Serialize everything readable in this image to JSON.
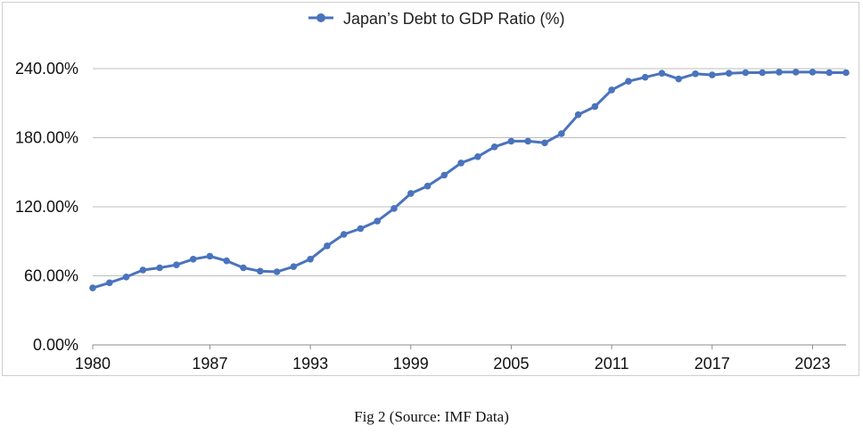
{
  "caption": "Fig 2 (Source: IMF Data)",
  "colors": {
    "series": "#4a73bd",
    "grid": "#bdbdbd",
    "axis": "#8c8c8c"
  },
  "chart_data": {
    "type": "line",
    "legend": {
      "label": "Japan’s Debt to GDP Ratio (%)",
      "position": "top-center"
    },
    "ylim": [
      0,
      240
    ],
    "y_ticks": [
      0,
      60,
      120,
      180,
      240
    ],
    "y_tick_labels": [
      "0.00%",
      "60.00%",
      "120.00%",
      "180.00%",
      "240.00%"
    ],
    "xlim": [
      1980,
      2025
    ],
    "x_ticks": [
      1980,
      1987,
      1993,
      1999,
      2005,
      2011,
      2017,
      2023
    ],
    "x_tick_labels": [
      "1980",
      "1987",
      "1993",
      "1999",
      "2005",
      "2011",
      "2017",
      "2023"
    ],
    "grid": true,
    "series": [
      {
        "name": "Japan’s Debt to GDP Ratio (%)",
        "x": [
          1980,
          1981,
          1982,
          1983,
          1984,
          1985,
          1986,
          1987,
          1988,
          1989,
          1990,
          1991,
          1992,
          1993,
          1994,
          1995,
          1996,
          1997,
          1998,
          1999,
          2000,
          2001,
          2002,
          2003,
          2004,
          2005,
          2006,
          2007,
          2008,
          2009,
          2010,
          2011,
          2012,
          2013,
          2014,
          2015,
          2016,
          2017,
          2018,
          2019,
          2020,
          2021,
          2022,
          2023,
          2024,
          2025
        ],
        "values": [
          49.5,
          54,
          59,
          65,
          67,
          69.5,
          74.5,
          77,
          73,
          67,
          64,
          63.5,
          68,
          74.5,
          86,
          96,
          101,
          107.5,
          118.5,
          131.5,
          138,
          147.5,
          158,
          163.5,
          172,
          177,
          177,
          175.5,
          183.5,
          200,
          207,
          221.5,
          229,
          232.5,
          236,
          231,
          235.5,
          234.5,
          236,
          236.5,
          236.5,
          237,
          237,
          237,
          236.5,
          236.5
        ]
      }
    ]
  }
}
